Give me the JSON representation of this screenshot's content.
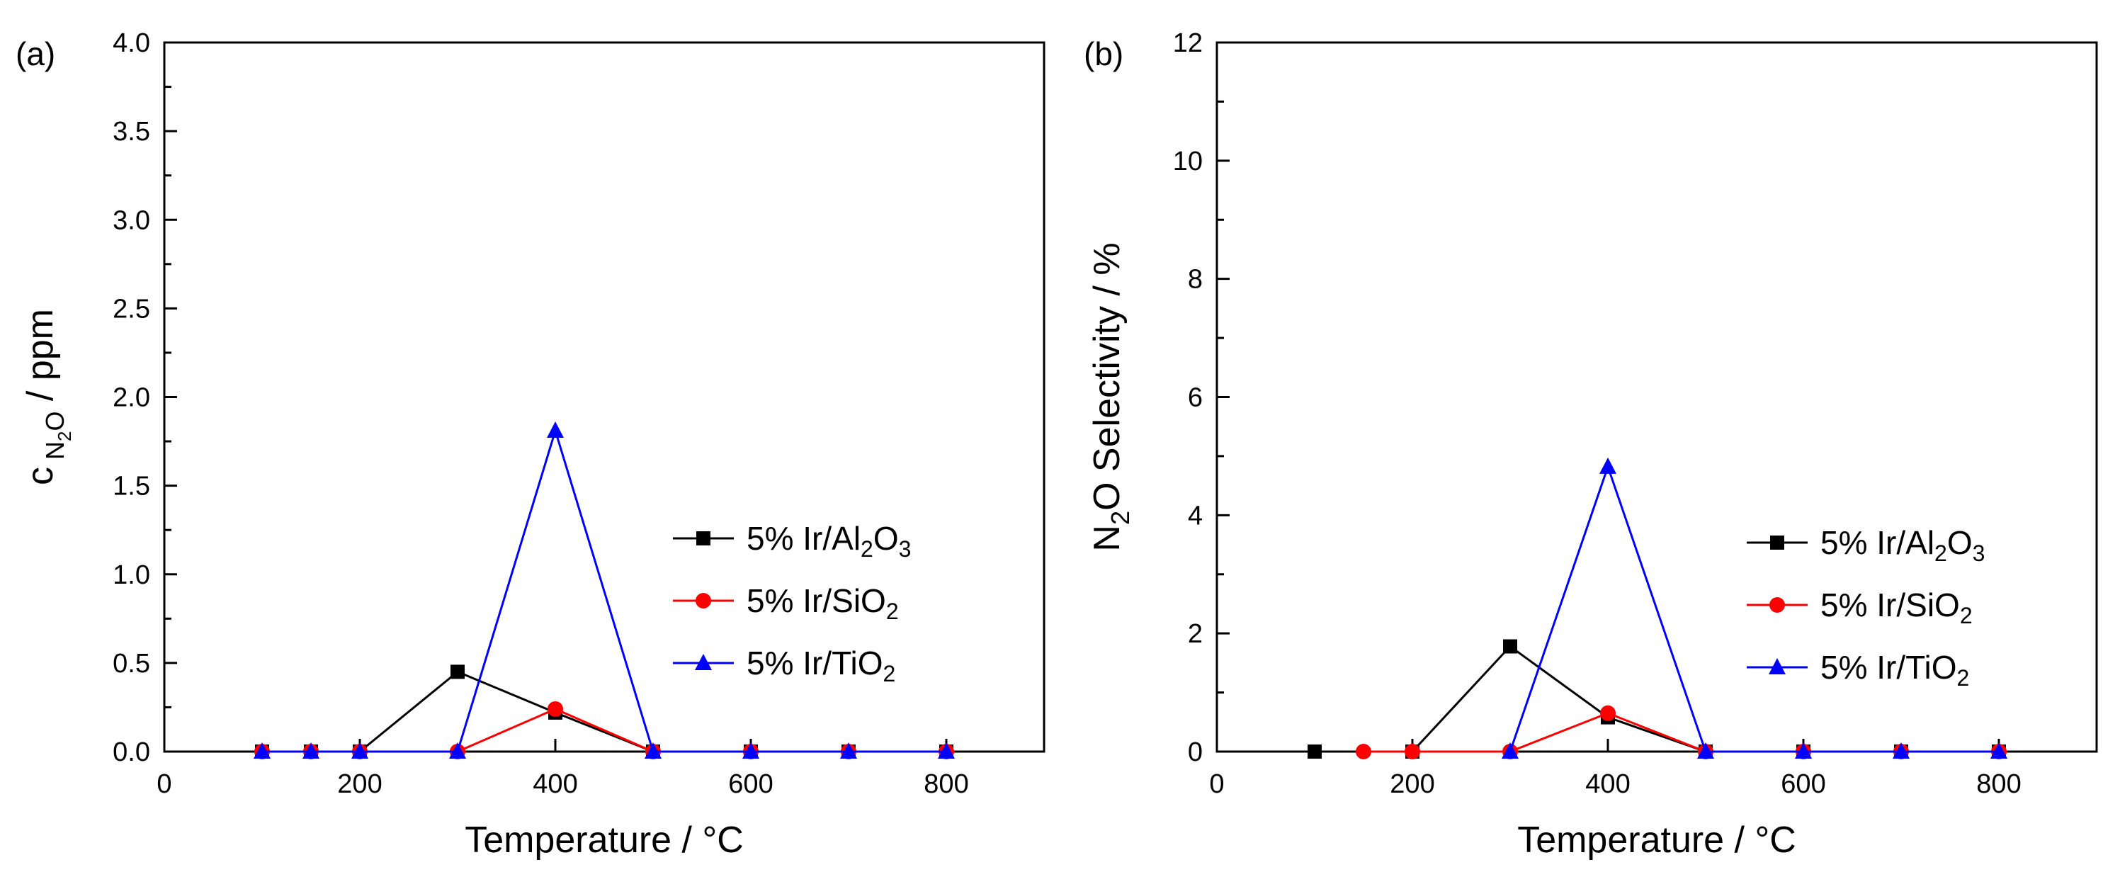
{
  "colors": {
    "black": "#000000",
    "red": "#ff0000",
    "blue": "#0000ff"
  },
  "legend": [
    {
      "key": "al2o3",
      "text": "5% Ir/Al",
      "sub1": "2",
      "mid": "O",
      "sub2": "3",
      "color": "#000000",
      "marker": "square"
    },
    {
      "key": "sio2",
      "text": "5% Ir/SiO",
      "sub1": "2",
      "mid": "",
      "sub2": "",
      "color": "#ff0000",
      "marker": "circle"
    },
    {
      "key": "tio2",
      "text": "5% Ir/TiO",
      "sub1": "2",
      "mid": "",
      "sub2": "",
      "color": "#0000ff",
      "marker": "triangle"
    }
  ],
  "chart_data": [
    {
      "type": "line",
      "panel_label": "(a)",
      "title": "",
      "xlabel": "Temperature / °C",
      "ylabel": {
        "pre": "c",
        "sub_main": "N",
        "sub_sub": "2",
        "sub_tail": "O",
        "post": " / ppm"
      },
      "xlim": [
        0,
        900
      ],
      "ylim": [
        0,
        4.0
      ],
      "xticks": [
        0,
        200,
        400,
        600,
        800
      ],
      "xticklabels": [
        "0",
        "200",
        "400",
        "600",
        "800"
      ],
      "yticks": [
        0,
        0.5,
        1.0,
        1.5,
        2.0,
        2.5,
        3.0,
        3.5,
        4.0
      ],
      "yticklabels": [
        "0.0",
        "0.5",
        "1.0",
        "1.5",
        "2.0",
        "2.5",
        "3.0",
        "3.5",
        "4.0"
      ],
      "legend_position": "center-right",
      "series": [
        {
          "name": "5% Ir/Al2O3",
          "key": "al2o3",
          "x": [
            100,
            150,
            200,
            300,
            400,
            500,
            600,
            700,
            800
          ],
          "values": [
            0,
            0,
            0,
            0.45,
            0.22,
            0,
            0,
            0,
            0
          ]
        },
        {
          "name": "5% Ir/SiO2",
          "key": "sio2",
          "x": [
            100,
            150,
            200,
            300,
            400,
            500,
            600,
            700,
            800
          ],
          "values": [
            0,
            0,
            0,
            0,
            0.24,
            0,
            0,
            0,
            0
          ]
        },
        {
          "name": "5% Ir/TiO2",
          "key": "tio2",
          "x": [
            100,
            150,
            200,
            300,
            400,
            500,
            600,
            700,
            800
          ],
          "values": [
            0,
            0,
            0,
            0,
            1.81,
            0,
            0,
            0,
            0
          ]
        }
      ]
    },
    {
      "type": "line",
      "panel_label": "(b)",
      "title": "",
      "xlabel": "Temperature / °C",
      "ylabel": {
        "pre": "N",
        "sub_main": "2",
        "sub_sub": "",
        "sub_tail": "",
        "post": "O Selectivity / %"
      },
      "xlim": [
        0,
        900
      ],
      "ylim": [
        0,
        12
      ],
      "xticks": [
        0,
        200,
        400,
        600,
        800
      ],
      "xticklabels": [
        "0",
        "200",
        "400",
        "600",
        "800"
      ],
      "yticks": [
        0,
        2,
        4,
        6,
        8,
        10,
        12
      ],
      "yticklabels": [
        "0",
        "2",
        "4",
        "6",
        "8",
        "10",
        "12"
      ],
      "legend_position": "center-right",
      "series": [
        {
          "name": "5% Ir/Al2O3",
          "key": "al2o3",
          "x": [
            100,
            200,
            300,
            400,
            500,
            600,
            700,
            800
          ],
          "values": [
            0,
            0,
            1.78,
            0.58,
            0,
            0,
            0,
            0
          ]
        },
        {
          "name": "5% Ir/SiO2",
          "key": "sio2",
          "x": [
            150,
            200,
            300,
            400,
            500,
            600,
            700,
            800
          ],
          "values": [
            0,
            0,
            0,
            0.65,
            0,
            0,
            0,
            0
          ]
        },
        {
          "name": "5% Ir/TiO2",
          "key": "tio2",
          "x": [
            300,
            400,
            500,
            600,
            700,
            800
          ],
          "values": [
            0,
            4.82,
            0,
            0,
            0,
            0
          ]
        }
      ]
    }
  ]
}
